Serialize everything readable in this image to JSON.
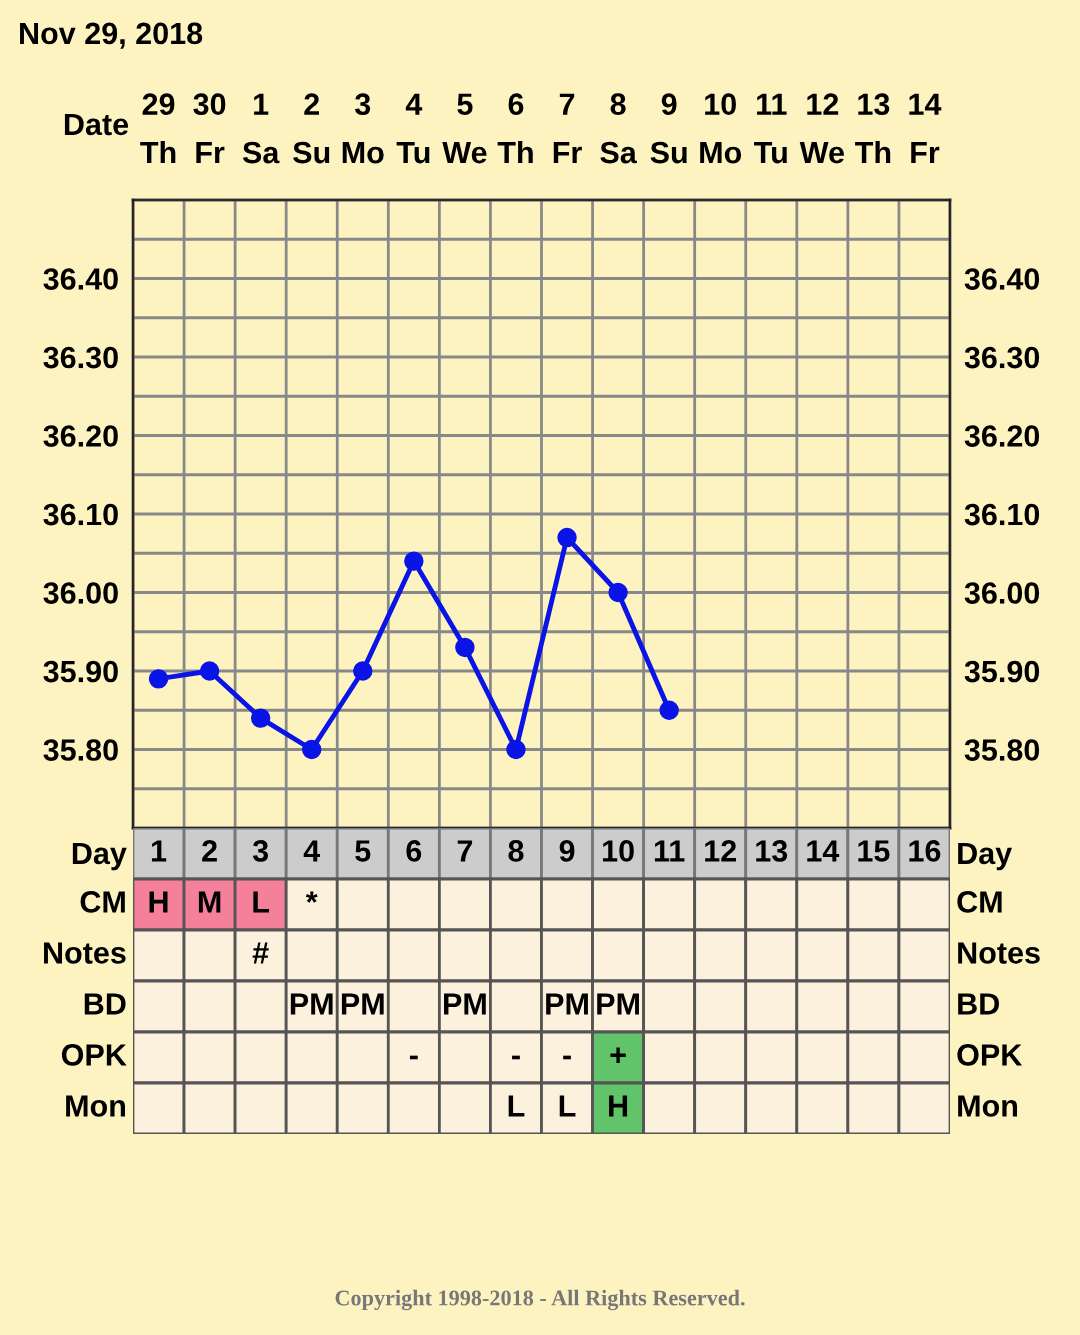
{
  "chart_data": [
    {
      "type": "line",
      "title": "Nov 29, 2018",
      "xlabel": "Date",
      "categories": [
        "29\nTh",
        "30\nFr",
        "1\nSa",
        "2\nSu",
        "3\nMo",
        "4\nTu",
        "5\nWe",
        "6\nTh",
        "7\nFr",
        "8\nSa",
        "9\nSu",
        "10\nMo",
        "11\nTu",
        "12\nWe",
        "13\nTh",
        "14\nFr"
      ],
      "series": [
        {
          "color": "#0a14e6",
          "values": [
            35.89,
            35.9,
            35.84,
            35.8,
            35.9,
            36.04,
            35.93,
            35.8,
            36.07,
            36.0,
            35.85,
            null,
            null,
            null,
            null,
            null
          ]
        }
      ],
      "marker": "circle",
      "line_style": "solid",
      "grid": true,
      "legend": false,
      "ylim": [
        35.7,
        36.5
      ],
      "yticks": [
        {
          "value": 35.75,
          "label": null
        },
        {
          "value": 35.8,
          "label": "35.80"
        },
        {
          "value": 35.85,
          "label": null
        },
        {
          "value": 35.9,
          "label": "35.90"
        },
        {
          "value": 35.95,
          "label": null
        },
        {
          "value": 36.0,
          "label": "36.00"
        },
        {
          "value": 36.05,
          "label": null
        },
        {
          "value": 36.1,
          "label": "36.10"
        },
        {
          "value": 36.15,
          "label": null
        },
        {
          "value": 36.2,
          "label": "36.20"
        },
        {
          "value": 36.25,
          "label": null
        },
        {
          "value": 36.3,
          "label": "36.30"
        },
        {
          "value": 36.35,
          "label": null
        },
        {
          "value": 36.4,
          "label": "36.40"
        },
        {
          "value": 36.45,
          "label": null
        }
      ],
      "y2lim": [
        35.7,
        36.5
      ],
      "y2ticks": [
        {
          "value": 35.8,
          "label": "35.80"
        },
        {
          "value": 35.9,
          "label": "35.90"
        },
        {
          "value": 36.0,
          "label": "36.00"
        },
        {
          "value": 36.1,
          "label": "36.10"
        },
        {
          "value": 36.2,
          "label": "36.20"
        },
        {
          "value": 36.3,
          "label": "36.30"
        },
        {
          "value": 36.4,
          "label": "36.40"
        }
      ],
      "annotations": [
        "Copyright 1998-2018 - All Rights Reserved."
      ]
    },
    {
      "type": "heatmap",
      "xlabel": "Day",
      "categories": [
        "1",
        "2",
        "3",
        "4",
        "5",
        "6",
        "7",
        "8",
        "9",
        "10",
        "11",
        "12",
        "13",
        "14",
        "15",
        "16"
      ],
      "y_categories": [
        "CM",
        "Notes",
        "BD",
        "OPK",
        "Mon"
      ],
      "y2_categories": [
        "CM",
        "Notes",
        "BD",
        "OPK",
        "Mon"
      ],
      "cells": [
        [
          null,
          null,
          null,
          null,
          null,
          null,
          null,
          null,
          null,
          null,
          null,
          null,
          null,
          null,
          null,
          null
        ],
        [
          null,
          null,
          null,
          null,
          null,
          null,
          null,
          null,
          null,
          null,
          null,
          null,
          null,
          null,
          null,
          null
        ],
        [
          null,
          null,
          null,
          null,
          null,
          null,
          null,
          null,
          null,
          null,
          null,
          null,
          null,
          null,
          null,
          null
        ],
        [
          null,
          null,
          null,
          null,
          null,
          null,
          null,
          null,
          null,
          null,
          null,
          null,
          null,
          null,
          null,
          null
        ],
        [
          null,
          null,
          null,
          null,
          null,
          null,
          null,
          null,
          null,
          null,
          null,
          null,
          null,
          null,
          null,
          null
        ]
      ],
      "cell_labels": [
        [
          "H",
          "M",
          "L",
          "*",
          null,
          null,
          null,
          null,
          null,
          null,
          null,
          null,
          null,
          null,
          null,
          null
        ],
        [
          null,
          null,
          "#",
          null,
          null,
          null,
          null,
          null,
          null,
          null,
          null,
          null,
          null,
          null,
          null,
          null
        ],
        [
          null,
          null,
          null,
          "PM",
          "PM",
          null,
          "PM",
          null,
          "PM",
          "PM",
          null,
          null,
          null,
          null,
          null,
          null
        ],
        [
          null,
          null,
          null,
          null,
          null,
          "-",
          null,
          "-",
          "-",
          "+",
          null,
          null,
          null,
          null,
          null,
          null
        ],
        [
          null,
          null,
          null,
          null,
          null,
          null,
          null,
          "L",
          "L",
          "H",
          null,
          null,
          null,
          null,
          null,
          null
        ]
      ],
      "colors": [
        [
          "#f5809a",
          "#f5809a",
          "#f5809a",
          null,
          null,
          null,
          null,
          null,
          null,
          null,
          null,
          null,
          null,
          null,
          null,
          null
        ],
        [
          null,
          null,
          null,
          null,
          null,
          null,
          null,
          null,
          null,
          null,
          null,
          null,
          null,
          null,
          null,
          null
        ],
        [
          null,
          null,
          null,
          null,
          null,
          null,
          null,
          null,
          null,
          null,
          null,
          null,
          null,
          null,
          null,
          null
        ],
        [
          null,
          null,
          null,
          null,
          null,
          null,
          null,
          null,
          null,
          "#62c46a",
          null,
          null,
          null,
          null,
          null,
          null
        ],
        [
          null,
          null,
          null,
          null,
          null,
          null,
          null,
          null,
          null,
          "#62c46a",
          null,
          null,
          null,
          null,
          null,
          null
        ]
      ]
    }
  ]
}
